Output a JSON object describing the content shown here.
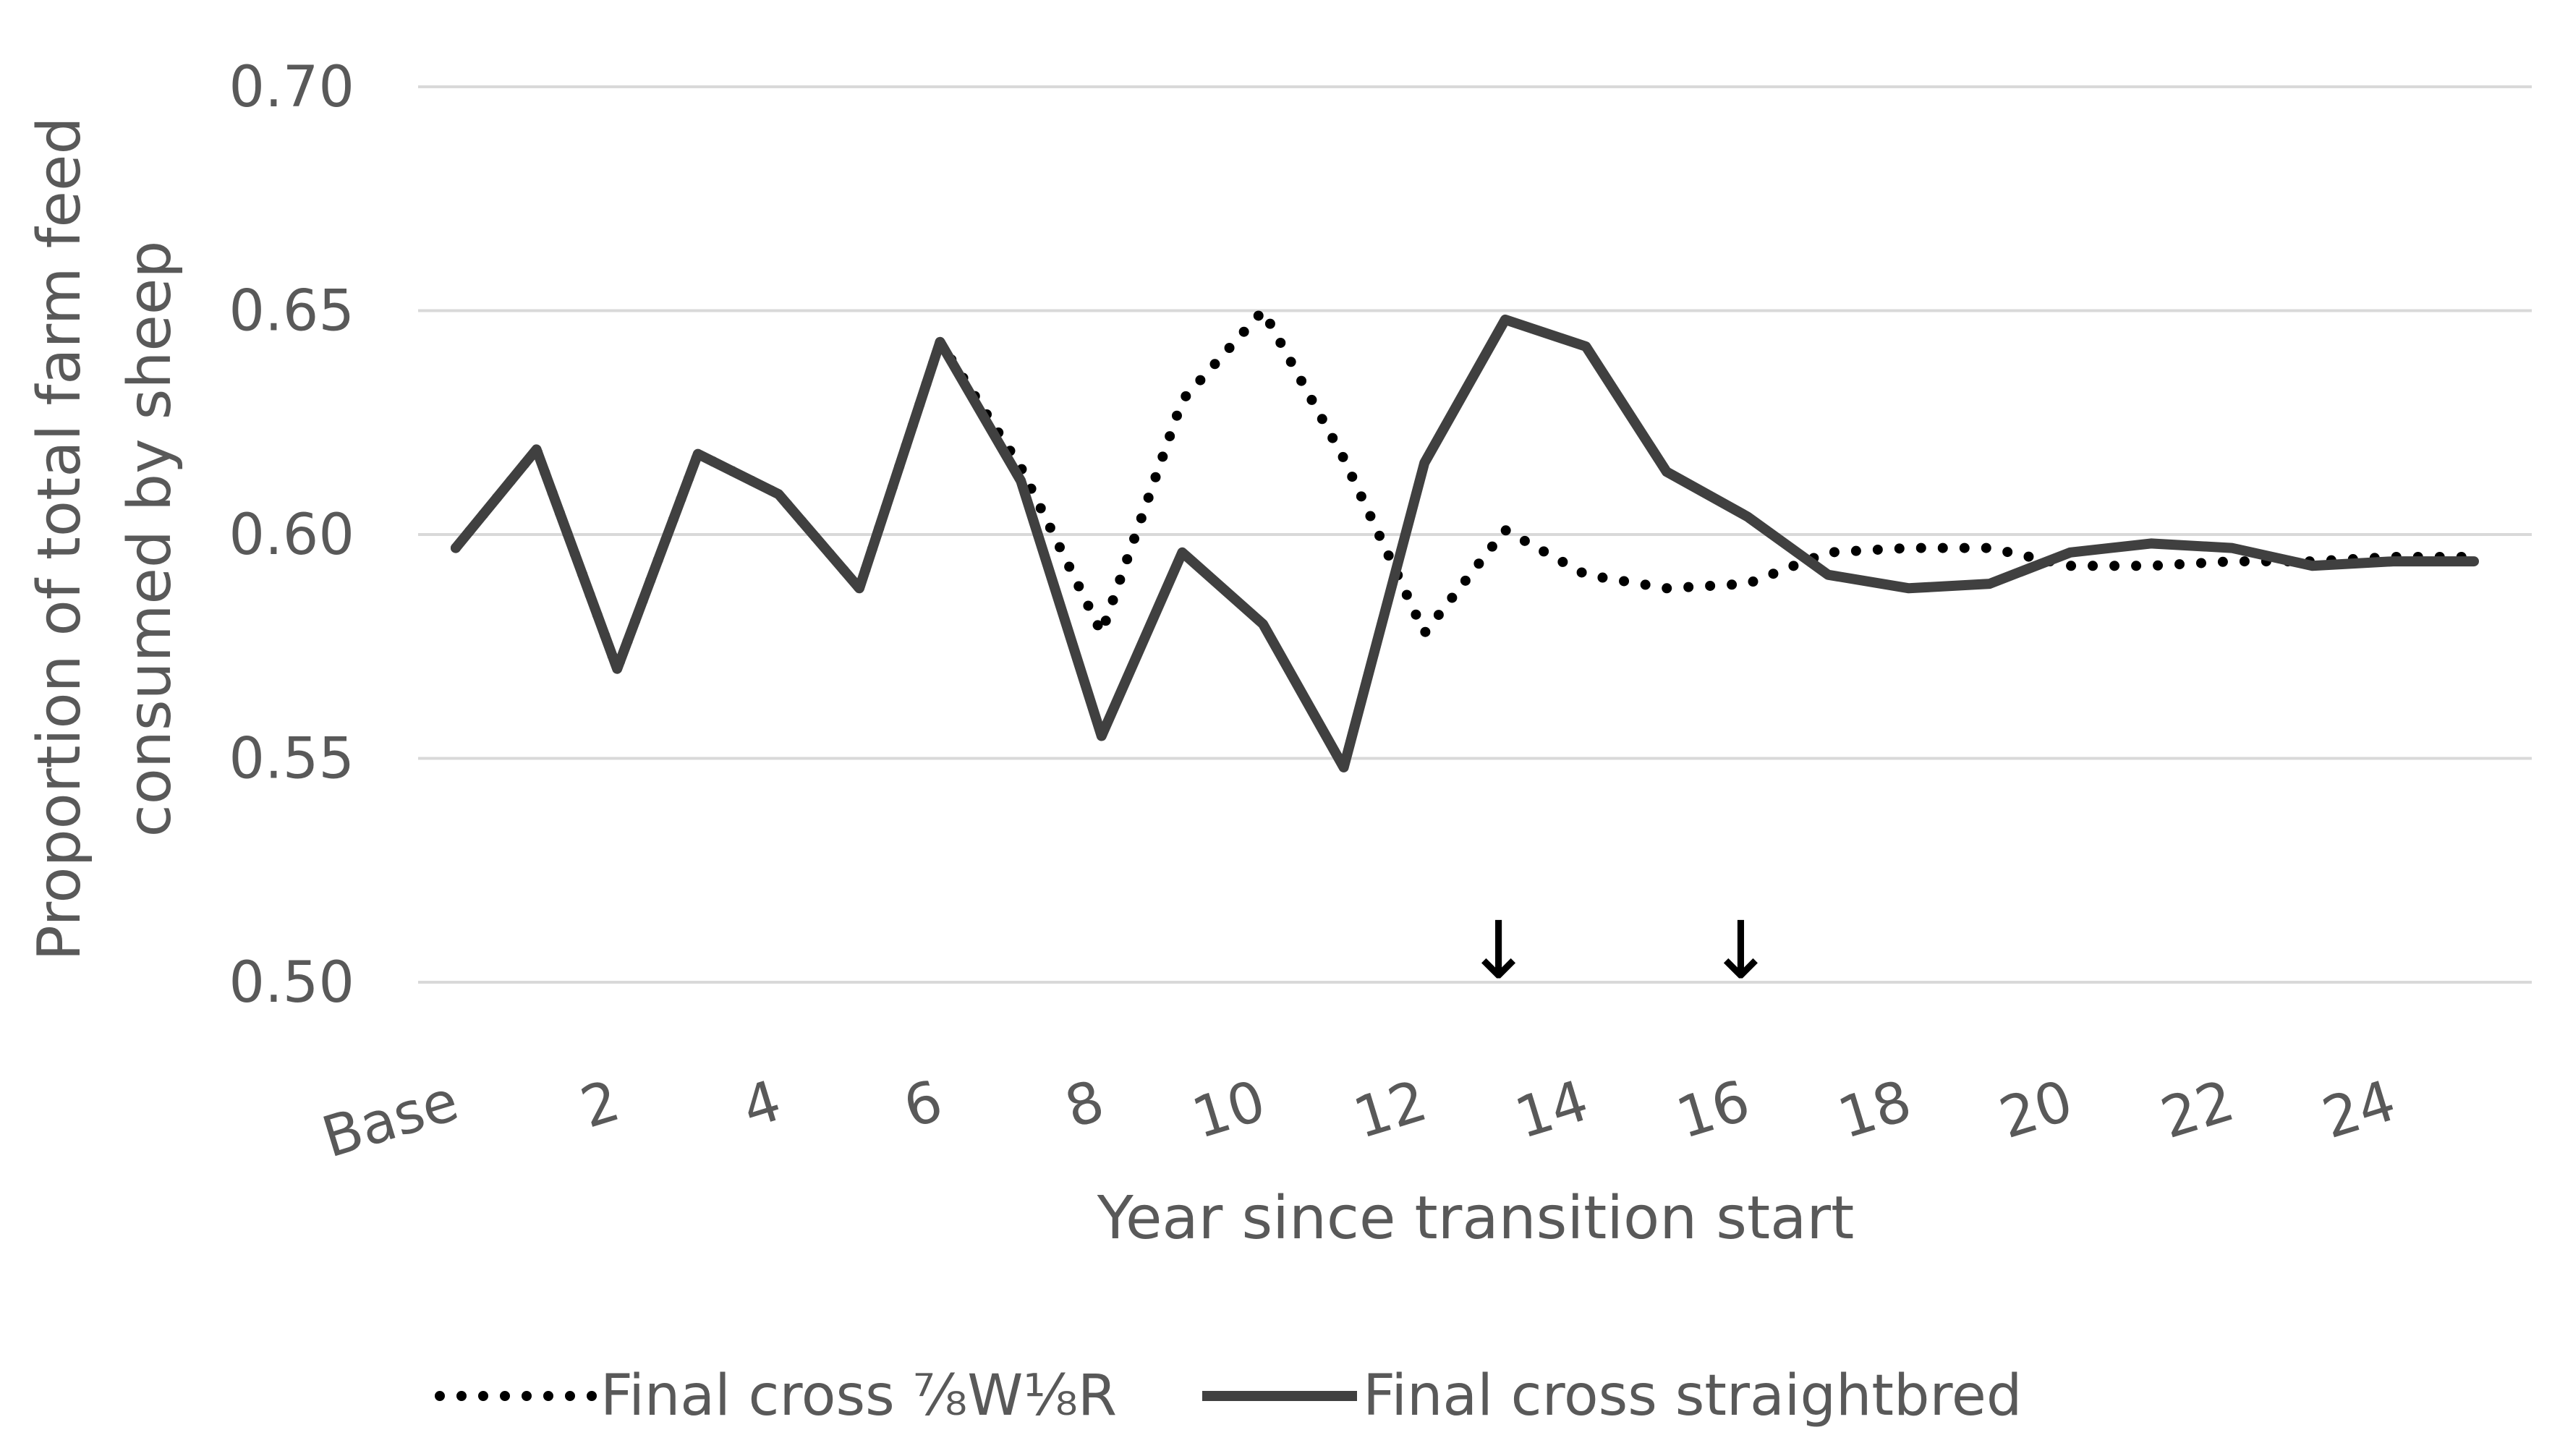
{
  "chart_data": {
    "type": "line",
    "title": "",
    "xlabel": "Year since transition start",
    "ylabel_lines": [
      "Proportion of total farm feed",
      "consumed by sheep"
    ],
    "ylim": [
      0.5,
      0.7
    ],
    "yticks": [
      "0.50",
      "0.55",
      "0.60",
      "0.65",
      "0.70"
    ],
    "ytick_values": [
      0.5,
      0.55,
      0.6,
      0.65,
      0.7
    ],
    "x": [
      0,
      1,
      2,
      3,
      4,
      5,
      6,
      7,
      8,
      9,
      10,
      11,
      12,
      13,
      14,
      15,
      16,
      17,
      18,
      19,
      20,
      21,
      22,
      23,
      24,
      25
    ],
    "xtick_labels": [
      "Base",
      "2",
      "4",
      "6",
      "8",
      "10",
      "12",
      "14",
      "16",
      "18",
      "20",
      "22",
      "24"
    ],
    "xtick_positions": [
      0,
      2,
      4,
      6,
      8,
      10,
      12,
      14,
      16,
      18,
      20,
      22,
      24
    ],
    "grid": true,
    "legend_position": "bottom",
    "annotations": [
      {
        "type": "arrow-down",
        "x": 12.9,
        "symbol": "↓"
      },
      {
        "type": "arrow-down",
        "x": 15.9,
        "symbol": "↓"
      }
    ],
    "series": [
      {
        "name": "Final cross ⅞W⅛R",
        "style": "dotted",
        "color": "#000000",
        "values": [
          0.597,
          0.619,
          0.57,
          0.618,
          0.609,
          0.588,
          0.643,
          0.615,
          0.578,
          0.63,
          0.65,
          0.617,
          0.578,
          0.601,
          0.591,
          0.588,
          0.589,
          0.596,
          0.597,
          0.597,
          0.593,
          0.593,
          0.594,
          0.594,
          0.595,
          0.595
        ]
      },
      {
        "name": "Final cross straightbred",
        "style": "solid",
        "color": "#404040",
        "values": [
          0.597,
          0.619,
          0.57,
          0.618,
          0.609,
          0.588,
          0.643,
          0.612,
          0.555,
          0.596,
          0.58,
          0.548,
          0.616,
          0.648,
          0.642,
          0.614,
          0.604,
          0.591,
          0.588,
          0.589,
          0.596,
          0.598,
          0.597,
          0.593,
          0.594,
          0.594
        ]
      }
    ]
  }
}
